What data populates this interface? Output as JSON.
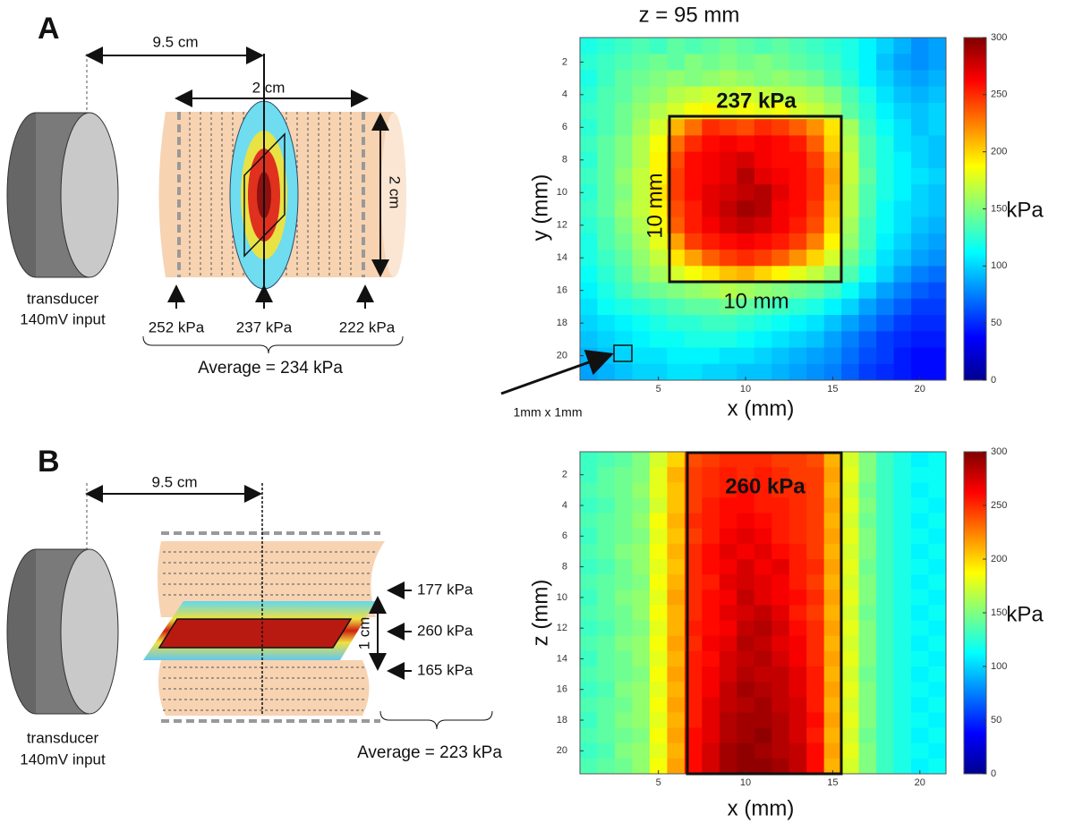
{
  "panel_a": {
    "letter": "A",
    "distance": "9.5 cm",
    "width": "2 cm",
    "height": "2 cm",
    "transducer": "transducer",
    "input": "140mV input",
    "pressures": [
      "252 kPa",
      "237 kPa",
      "222 kPa"
    ],
    "average": "Average = 234 kPa"
  },
  "panel_b": {
    "letter": "B",
    "distance": "9.5 cm",
    "thickness": "1 cm",
    "transducer": "transducer",
    "input": "140mV input",
    "pressures": [
      "177 kPa",
      "260 kPa",
      "165 kPa"
    ],
    "average": "Average = 223 kPa"
  },
  "chart_data": [
    {
      "type": "heatmap",
      "title": "z = 95 mm",
      "x_label": "x (mm)",
      "y_label": "y (mm)",
      "colormap": "jet",
      "box_label": "237 kPa",
      "box_width_label": "10 mm",
      "box_height_label": "10 mm",
      "cell_label": "1mm x 1mm",
      "x": [
        1,
        2,
        3,
        4,
        5,
        6,
        7,
        8,
        9,
        10,
        11,
        12,
        13,
        14,
        15,
        16,
        17,
        18,
        19,
        20,
        21
      ],
      "y": [
        1,
        2,
        3,
        4,
        5,
        6,
        7,
        8,
        9,
        10,
        11,
        12,
        13,
        14,
        15,
        16,
        17,
        18,
        19,
        20,
        21
      ],
      "xlim": [
        0.5,
        21.5
      ],
      "xticks": [
        5,
        10,
        15,
        20
      ],
      "ylim": [
        0.5,
        21.5
      ],
      "yticks": [
        2,
        4,
        6,
        8,
        10,
        12,
        14,
        16,
        18,
        20
      ],
      "colorbar_label": "kPa",
      "clim": [
        0,
        300
      ],
      "cticks": [
        0,
        50,
        100,
        150,
        200,
        250,
        300
      ],
      "values": [
        [
          120,
          125,
          130,
          135,
          130,
          140,
          135,
          140,
          145,
          140,
          135,
          140,
          135,
          130,
          125,
          120,
          110,
          100,
          90,
          80,
          85
        ],
        [
          125,
          130,
          135,
          140,
          145,
          140,
          150,
          145,
          150,
          145,
          150,
          145,
          140,
          135,
          130,
          120,
          110,
          95,
          85,
          80,
          85
        ],
        [
          120,
          130,
          140,
          145,
          150,
          155,
          150,
          155,
          160,
          155,
          150,
          155,
          150,
          145,
          135,
          125,
          110,
          100,
          90,
          85,
          90
        ],
        [
          125,
          135,
          140,
          150,
          155,
          165,
          170,
          175,
          170,
          175,
          170,
          165,
          165,
          160,
          150,
          135,
          120,
          105,
          95,
          90,
          95
        ],
        [
          130,
          135,
          145,
          155,
          165,
          175,
          185,
          190,
          180,
          185,
          180,
          185,
          175,
          170,
          160,
          140,
          125,
          110,
          100,
          95,
          100
        ],
        [
          125,
          135,
          145,
          160,
          175,
          210,
          230,
          250,
          245,
          240,
          250,
          245,
          235,
          220,
          195,
          160,
          130,
          115,
          105,
          95,
          100
        ],
        [
          130,
          140,
          150,
          165,
          185,
          230,
          250,
          260,
          265,
          260,
          265,
          260,
          255,
          235,
          200,
          165,
          135,
          120,
          105,
          100,
          95
        ],
        [
          125,
          140,
          150,
          165,
          190,
          240,
          260,
          265,
          270,
          275,
          265,
          260,
          260,
          245,
          210,
          170,
          135,
          120,
          110,
          100,
          95
        ],
        [
          130,
          140,
          155,
          170,
          190,
          245,
          260,
          265,
          270,
          285,
          270,
          265,
          260,
          250,
          215,
          170,
          140,
          120,
          110,
          105,
          100
        ],
        [
          125,
          140,
          150,
          170,
          195,
          245,
          260,
          270,
          275,
          280,
          285,
          270,
          260,
          250,
          210,
          165,
          135,
          120,
          110,
          100,
          95
        ],
        [
          130,
          140,
          155,
          170,
          190,
          240,
          255,
          270,
          280,
          290,
          285,
          265,
          260,
          245,
          205,
          165,
          135,
          115,
          105,
          100,
          95
        ],
        [
          125,
          135,
          150,
          165,
          185,
          235,
          255,
          265,
          275,
          280,
          275,
          265,
          255,
          240,
          200,
          160,
          130,
          115,
          105,
          95,
          90
        ],
        [
          120,
          135,
          145,
          160,
          180,
          215,
          245,
          255,
          260,
          265,
          260,
          255,
          245,
          225,
          190,
          155,
          130,
          110,
          100,
          90,
          85
        ],
        [
          120,
          130,
          140,
          155,
          170,
          195,
          215,
          235,
          245,
          250,
          245,
          235,
          220,
          200,
          175,
          145,
          125,
          105,
          95,
          85,
          80
        ],
        [
          115,
          125,
          135,
          150,
          160,
          175,
          185,
          195,
          205,
          210,
          200,
          190,
          180,
          170,
          155,
          135,
          115,
          100,
          85,
          75,
          70
        ],
        [
          110,
          120,
          130,
          140,
          145,
          150,
          155,
          160,
          165,
          160,
          155,
          150,
          145,
          140,
          130,
          115,
          100,
          85,
          75,
          65,
          60
        ],
        [
          105,
          115,
          120,
          125,
          130,
          135,
          140,
          140,
          145,
          140,
          135,
          130,
          125,
          120,
          110,
          100,
          85,
          75,
          65,
          55,
          55
        ],
        [
          100,
          105,
          110,
          115,
          120,
          125,
          125,
          130,
          130,
          125,
          120,
          115,
          110,
          105,
          95,
          85,
          75,
          65,
          55,
          50,
          50
        ],
        [
          95,
          100,
          105,
          110,
          115,
          115,
          120,
          120,
          120,
          115,
          110,
          105,
          100,
          95,
          85,
          75,
          65,
          55,
          50,
          45,
          45
        ],
        [
          90,
          95,
          100,
          105,
          105,
          110,
          110,
          110,
          105,
          105,
          100,
          95,
          90,
          85,
          80,
          70,
          60,
          55,
          45,
          40,
          40
        ],
        [
          85,
          90,
          95,
          100,
          100,
          105,
          105,
          100,
          100,
          95,
          95,
          90,
          85,
          80,
          75,
          65,
          55,
          50,
          45,
          40,
          40
        ]
      ]
    },
    {
      "type": "heatmap",
      "x_label": "x (mm)",
      "y_label": "z (mm)",
      "colormap": "jet",
      "box_label": "260 kPa",
      "x": [
        1,
        2,
        3,
        4,
        5,
        6,
        7,
        8,
        9,
        10,
        11,
        12,
        13,
        14,
        15,
        16,
        17,
        18,
        19,
        20,
        21
      ],
      "y": [
        1,
        2,
        3,
        4,
        5,
        6,
        7,
        8,
        9,
        10,
        11,
        12,
        13,
        14,
        15,
        16,
        17,
        18,
        19,
        20,
        21
      ],
      "xlim": [
        0.5,
        21.5
      ],
      "xticks": [
        5,
        10,
        15,
        20
      ],
      "ylim": [
        0.5,
        21.5
      ],
      "yticks": [
        2,
        4,
        6,
        8,
        10,
        12,
        14,
        16,
        18,
        20
      ],
      "colorbar_label": "kPa",
      "clim": [
        0,
        300
      ],
      "cticks": [
        0,
        50,
        100,
        150,
        200,
        250,
        300
      ],
      "values": [
        [
          130,
          135,
          140,
          150,
          175,
          200,
          240,
          245,
          250,
          250,
          250,
          245,
          245,
          240,
          210,
          175,
          150,
          130,
          120,
          110,
          115
        ],
        [
          130,
          140,
          145,
          150,
          180,
          210,
          245,
          250,
          255,
          250,
          255,
          250,
          245,
          245,
          215,
          180,
          150,
          130,
          120,
          115,
          115
        ],
        [
          135,
          140,
          145,
          155,
          180,
          205,
          245,
          250,
          255,
          260,
          255,
          250,
          250,
          245,
          210,
          175,
          145,
          130,
          120,
          110,
          115
        ],
        [
          130,
          135,
          145,
          150,
          175,
          205,
          245,
          255,
          260,
          260,
          255,
          255,
          250,
          245,
          215,
          180,
          150,
          130,
          120,
          115,
          110
        ],
        [
          135,
          140,
          145,
          155,
          185,
          210,
          250,
          255,
          260,
          265,
          260,
          255,
          250,
          245,
          210,
          175,
          145,
          130,
          120,
          110,
          115
        ],
        [
          130,
          140,
          145,
          150,
          180,
          205,
          245,
          255,
          265,
          270,
          265,
          255,
          250,
          245,
          215,
          180,
          150,
          130,
          120,
          115,
          110
        ],
        [
          135,
          140,
          150,
          155,
          185,
          210,
          250,
          260,
          270,
          265,
          270,
          260,
          255,
          245,
          210,
          175,
          150,
          130,
          120,
          110,
          115
        ],
        [
          130,
          135,
          145,
          155,
          180,
          205,
          250,
          260,
          265,
          275,
          265,
          270,
          255,
          250,
          215,
          180,
          145,
          130,
          120,
          115,
          110
        ],
        [
          135,
          140,
          145,
          150,
          185,
          210,
          250,
          255,
          270,
          275,
          270,
          265,
          255,
          245,
          210,
          175,
          150,
          130,
          120,
          110,
          115
        ],
        [
          130,
          140,
          150,
          155,
          180,
          215,
          250,
          260,
          265,
          280,
          270,
          265,
          260,
          250,
          215,
          180,
          150,
          130,
          120,
          115,
          110
        ],
        [
          135,
          140,
          145,
          155,
          185,
          210,
          250,
          260,
          270,
          275,
          280,
          270,
          255,
          245,
          210,
          175,
          145,
          130,
          120,
          110,
          115
        ],
        [
          130,
          135,
          145,
          150,
          180,
          210,
          255,
          260,
          265,
          280,
          285,
          275,
          260,
          250,
          215,
          180,
          150,
          130,
          120,
          115,
          110
        ],
        [
          135,
          140,
          150,
          155,
          185,
          215,
          250,
          265,
          270,
          285,
          280,
          270,
          265,
          250,
          210,
          175,
          150,
          130,
          120,
          110,
          115
        ],
        [
          130,
          140,
          145,
          155,
          180,
          210,
          255,
          260,
          275,
          280,
          285,
          275,
          265,
          250,
          215,
          180,
          150,
          130,
          120,
          115,
          110
        ],
        [
          135,
          140,
          145,
          150,
          185,
          215,
          255,
          265,
          275,
          285,
          280,
          280,
          270,
          255,
          210,
          175,
          145,
          130,
          120,
          110,
          115
        ],
        [
          130,
          135,
          150,
          155,
          180,
          210,
          255,
          265,
          280,
          290,
          285,
          280,
          270,
          255,
          215,
          180,
          150,
          130,
          120,
          115,
          110
        ],
        [
          135,
          140,
          145,
          155,
          185,
          215,
          255,
          270,
          280,
          285,
          290,
          280,
          275,
          255,
          210,
          175,
          150,
          130,
          120,
          110,
          115
        ],
        [
          130,
          140,
          150,
          155,
          180,
          210,
          255,
          270,
          285,
          290,
          290,
          285,
          275,
          260,
          215,
          180,
          150,
          130,
          120,
          115,
          110
        ],
        [
          135,
          140,
          145,
          150,
          185,
          215,
          260,
          270,
          285,
          290,
          295,
          285,
          275,
          255,
          210,
          175,
          145,
          130,
          120,
          110,
          115
        ],
        [
          130,
          135,
          150,
          155,
          180,
          210,
          260,
          275,
          290,
          295,
          290,
          285,
          280,
          260,
          215,
          180,
          150,
          130,
          120,
          115,
          110
        ],
        [
          135,
          140,
          145,
          155,
          185,
          215,
          260,
          275,
          290,
          295,
          295,
          290,
          280,
          260,
          210,
          175,
          150,
          130,
          120,
          110,
          115
        ]
      ]
    }
  ]
}
